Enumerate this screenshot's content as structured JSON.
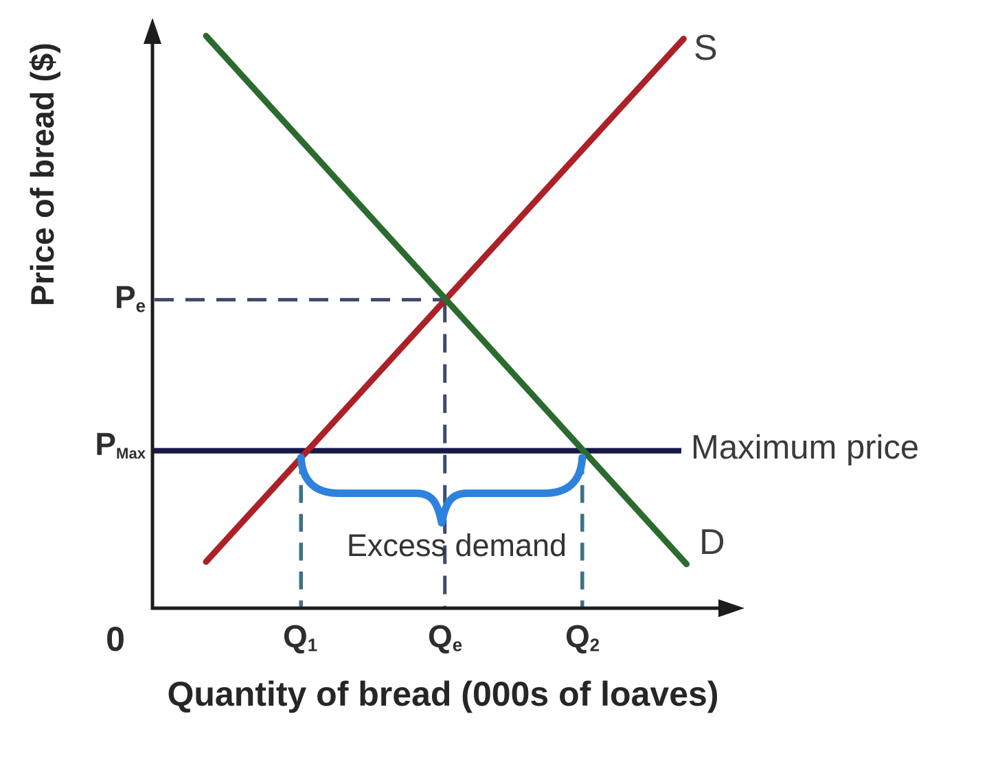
{
  "figure": {
    "y_axis_label": "Price of bread ($)",
    "x_axis_label": "Quantity of bread (000s of loaves)",
    "origin_label": "0",
    "supply_label": "S",
    "demand_label": "D",
    "max_price_label": "Maximum price",
    "excess_demand_label": "Excess demand",
    "pe": {
      "main": "P",
      "sub": "e"
    },
    "pmax": {
      "main": "P",
      "sub": "Max"
    },
    "q1": {
      "main": "Q",
      "sub": "1"
    },
    "qe": {
      "main": "Q",
      "sub": "e"
    },
    "q2": {
      "main": "Q",
      "sub": "2"
    }
  },
  "colors": {
    "supply": "#ab2127",
    "demand": "#2c6b2f",
    "max_price_line": "#15184a",
    "brace": "#2e82dd",
    "dash_equilibrium": "#3d4a6e",
    "dash_quantity": "#3f7086",
    "axis": "#1d1d1d"
  },
  "chart_data": {
    "type": "line",
    "title": "",
    "xlabel": "Quantity of bread (000s of loaves)",
    "ylabel": "Price of bread ($)",
    "axes_numeric": false,
    "x_range_units": [
      0,
      10
    ],
    "y_range_units": [
      0,
      10
    ],
    "grid": false,
    "legend_position": "none",
    "series": [
      {
        "name": "S",
        "role": "supply",
        "x": [
          0.92,
          9.12
        ],
        "y": [
          0.79,
          9.69
        ]
      },
      {
        "name": "D",
        "role": "demand",
        "x": [
          0.92,
          9.17
        ],
        "y": [
          9.74,
          0.75
        ]
      }
    ],
    "equilibrium": {
      "p_label": "Pe",
      "q_label": "Qe",
      "p": 5.25,
      "q": 5.02
    },
    "price_ceiling": {
      "label": "Maximum price",
      "p_label": "PMax",
      "p": 2.68,
      "line_x_end": 9.08,
      "q_supplied_label": "Q1",
      "q_supplied": 2.55,
      "q_demanded_label": "Q2",
      "q_demanded": 7.38
    },
    "annotations": [
      {
        "text": "Excess demand",
        "type": "brace",
        "from_q": 2.55,
        "to_q": 7.38
      }
    ]
  }
}
